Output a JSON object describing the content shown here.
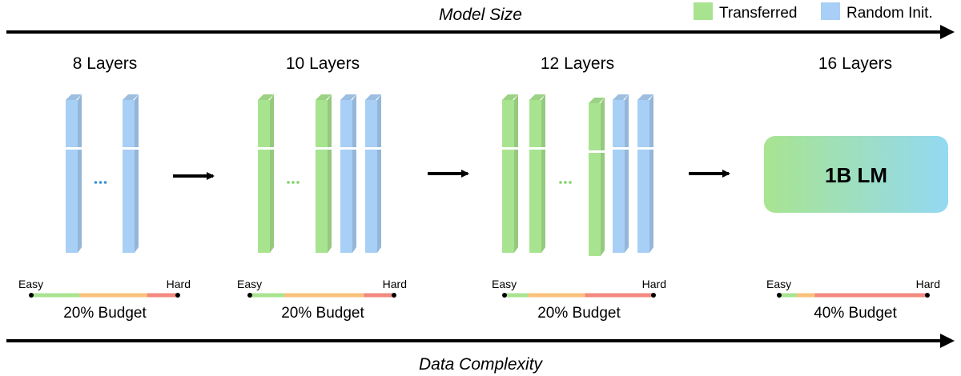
{
  "top_axis_label": "Model Size",
  "bottom_axis_label": "Data Complexity",
  "legend": [
    {
      "label": "Transferred",
      "color": "#a8e490"
    },
    {
      "label": "Random Init.",
      "color": "#a8cff5"
    }
  ],
  "colors": {
    "transferred": "#a8e490",
    "random_init": "#a8cff5",
    "dots_transferred": "#7fd36a",
    "dots_random": "#3b8fd6",
    "easy": "#a8e490",
    "medium": "#f9c27a",
    "hard": "#f38a80"
  },
  "stages": [
    {
      "title": "8 Layers",
      "layers": [
        "random_init",
        "gap",
        "random_init"
      ],
      "dots_kind": "dots_random",
      "budget_label": "20% Budget",
      "easy_label": "Easy",
      "hard_label": "Hard",
      "difficulty_mix": [
        0.33,
        0.46,
        0.21
      ]
    },
    {
      "title": "10 Layers",
      "layers": [
        "transferred",
        "gap",
        "transferred",
        "random_init",
        "random_init"
      ],
      "dots_kind": "dots_transferred",
      "budget_label": "20% Budget",
      "easy_label": "Easy",
      "hard_label": "Hard",
      "difficulty_mix": [
        0.24,
        0.55,
        0.21
      ]
    },
    {
      "title": "12 Layers",
      "layers": [
        "transferred",
        "transferred",
        "gap",
        "transferred",
        "random_init",
        "random_init"
      ],
      "dots_kind": "dots_transferred",
      "budget_label": "20% Budget",
      "easy_label": "Easy",
      "hard_label": "Hard",
      "difficulty_mix": [
        0.16,
        0.38,
        0.46
      ]
    },
    {
      "title": "16 Layers",
      "model_box_label": "1B LM",
      "budget_label": "40% Budget",
      "easy_label": "Easy",
      "hard_label": "Hard",
      "difficulty_mix": [
        0.12,
        0.12,
        0.76
      ]
    }
  ]
}
